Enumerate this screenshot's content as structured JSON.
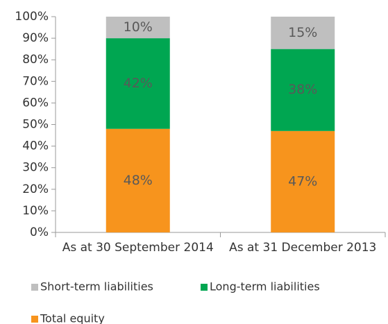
{
  "chart_data": {
    "type": "stacked_bar",
    "categories": [
      "As at 30 September 2014",
      "As at 31 December 2013"
    ],
    "series": [
      {
        "name": "Total equity",
        "color": "#f7941d",
        "values": [
          48,
          47
        ],
        "value_labels": [
          "48%",
          "47%"
        ]
      },
      {
        "name": "Long-term liabilities",
        "color": "#00a651",
        "values": [
          42,
          38
        ],
        "value_labels": [
          "42%",
          "38%"
        ]
      },
      {
        "name": "Short-term liabilities",
        "color": "#bfbfbf",
        "values": [
          10,
          15
        ],
        "value_labels": [
          "10%",
          "15%"
        ]
      }
    ],
    "ylim": [
      0,
      100
    ],
    "yticks": [
      {
        "value": 0,
        "label": "0%"
      },
      {
        "value": 10,
        "label": "10%"
      },
      {
        "value": 20,
        "label": "20%"
      },
      {
        "value": 30,
        "label": "30%"
      },
      {
        "value": 40,
        "label": "40%"
      },
      {
        "value": 50,
        "label": "50%"
      },
      {
        "value": 60,
        "label": "60%"
      },
      {
        "value": 70,
        "label": "70%"
      },
      {
        "value": 80,
        "label": "80%"
      },
      {
        "value": 90,
        "label": "90%"
      },
      {
        "value": 100,
        "label": "100%"
      }
    ],
    "grid": false
  }
}
